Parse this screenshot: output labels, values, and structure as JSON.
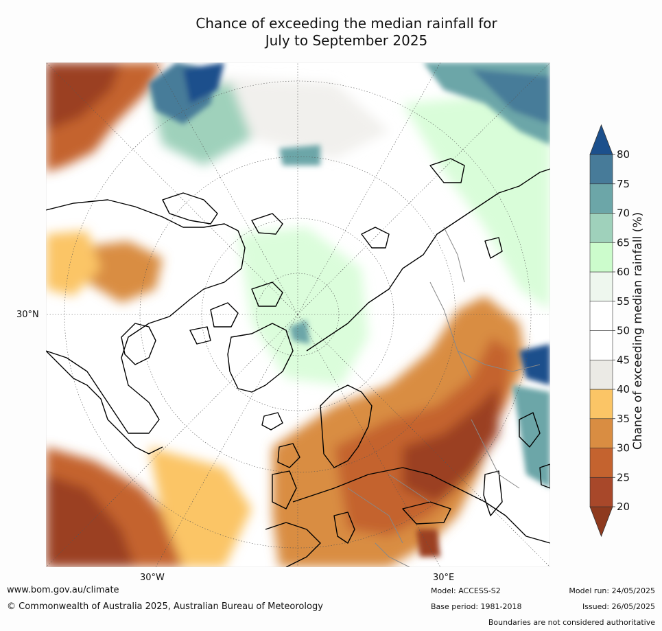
{
  "title_line1": "Chance of exceeding the median rainfall for",
  "title_line2": "July to September 2025",
  "graticule_labels": {
    "lat": "30°N",
    "lon_west": "30°W",
    "lon_east": "30°E"
  },
  "colorbar": {
    "title": "Chance of exceeding median rainfall (%)",
    "ticks": [
      "20",
      "25",
      "30",
      "35",
      "40",
      "45",
      "50",
      "55",
      "60",
      "65",
      "70",
      "75",
      "80"
    ],
    "colors": [
      "#8e3a1e",
      "#a8482a",
      "#c4632f",
      "#d98d42",
      "#fbc566",
      "#ebeae5",
      "#ffffff",
      "#ffffff",
      "#eef7ee",
      "#ccfccc",
      "#9fd1bb",
      "#6ca6a8",
      "#477b99",
      "#1c508c"
    ]
  },
  "map_colors": {
    "ocean_bg": "#ffffff",
    "dry_dark": "#9b3f20",
    "dry_mid": "#c4632f",
    "dry_light": "#d98d42",
    "dry_pale": "#fbc566",
    "neutral": "#ebeae5",
    "wet_pale": "#ccfccc",
    "wet_mid": "#9fd1bb",
    "wet_teal": "#6ca6a8",
    "wet_dark": "#1c508c",
    "coast": "#000000",
    "border": "#888888"
  },
  "footer": {
    "url": "www.bom.gov.au/climate",
    "copyright": "© Commonwealth of Australia 2025, Australian Bureau of Meteorology",
    "model": "Model: ACCESS-S2",
    "base_period": "Base period: 1981-2018",
    "model_run": "Model run: 24/05/2025",
    "issued": "Issued: 26/05/2025",
    "disclaimer": "Boundaries are not considered authoritative"
  }
}
